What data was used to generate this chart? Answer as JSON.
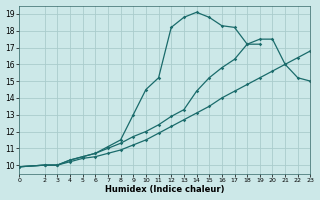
{
  "xlabel": "Humidex (Indice chaleur)",
  "bg_color": "#cce8e8",
  "grid_color": "#aacccc",
  "line_color": "#1a6b6b",
  "xlim": [
    0,
    23
  ],
  "ylim": [
    9.5,
    19.5
  ],
  "xticks": [
    0,
    2,
    3,
    4,
    5,
    6,
    7,
    8,
    9,
    10,
    11,
    12,
    13,
    14,
    15,
    16,
    17,
    18,
    19,
    20,
    21,
    22,
    23
  ],
  "yticks": [
    10,
    11,
    12,
    13,
    14,
    15,
    16,
    17,
    18,
    19
  ],
  "line1_x": [
    0,
    2,
    3,
    4,
    5,
    6,
    7,
    8,
    9,
    10,
    11,
    12,
    13,
    14,
    15,
    16,
    17,
    18,
    19,
    20,
    21,
    22,
    23
  ],
  "line1_y": [
    9.9,
    10.0,
    10.0,
    10.2,
    10.4,
    10.5,
    10.7,
    10.9,
    11.2,
    11.5,
    11.9,
    12.3,
    12.7,
    13.1,
    13.5,
    14.0,
    14.4,
    14.8,
    15.2,
    15.6,
    16.0,
    16.4,
    16.8
  ],
  "line2_x": [
    0,
    2,
    3,
    4,
    5,
    6,
    7,
    8,
    9,
    10,
    11,
    12,
    13,
    14,
    15,
    16,
    17,
    18,
    19,
    20,
    21,
    22,
    23
  ],
  "line2_y": [
    9.9,
    10.0,
    10.0,
    10.3,
    10.5,
    10.7,
    11.0,
    11.3,
    11.7,
    12.0,
    12.4,
    12.9,
    13.3,
    14.4,
    15.2,
    15.8,
    16.3,
    17.2,
    17.5,
    17.5,
    16.0,
    15.2,
    15.0
  ],
  "line3_x": [
    0,
    2,
    3,
    4,
    5,
    6,
    7,
    8,
    9,
    10,
    11,
    12,
    13,
    14,
    15,
    16,
    17,
    18,
    19
  ],
  "line3_y": [
    9.9,
    10.0,
    10.0,
    10.3,
    10.5,
    10.7,
    11.1,
    11.5,
    13.0,
    14.5,
    15.2,
    18.2,
    18.8,
    19.1,
    18.8,
    18.3,
    18.2,
    17.2,
    17.2
  ],
  "marker": "D",
  "marker_size": 1.8,
  "linewidth": 0.9
}
